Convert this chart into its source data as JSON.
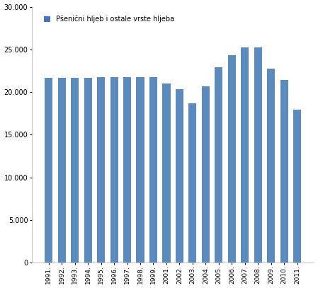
{
  "years": [
    "1991.",
    "1992.",
    "1993.",
    "1994.",
    "1995.",
    "1996.",
    "1997.",
    "1998.",
    "1999.",
    "2001.",
    "2002.",
    "2003.",
    "2004.",
    "2005.",
    "2006.",
    "2007.",
    "2008.",
    "2009.",
    "2010.",
    "2011."
  ],
  "values": [
    21700,
    21700,
    21700,
    21700,
    21750,
    21750,
    21750,
    21750,
    21750,
    21050,
    20350,
    18700,
    20650,
    22900,
    24300,
    25200,
    25200,
    22750,
    21450,
    17950
  ],
  "bar_color": "#5b8abf",
  "legend_label": "Pšenični hljeb i ostale vrste hljeba",
  "ylim": [
    0,
    30000
  ],
  "yticks": [
    0,
    5000,
    10000,
    15000,
    20000,
    25000,
    30000
  ],
  "background_color": "#ffffff",
  "grid_color": "#ffffff",
  "legend_marker_color": "#4472c4",
  "bar_width": 0.6
}
